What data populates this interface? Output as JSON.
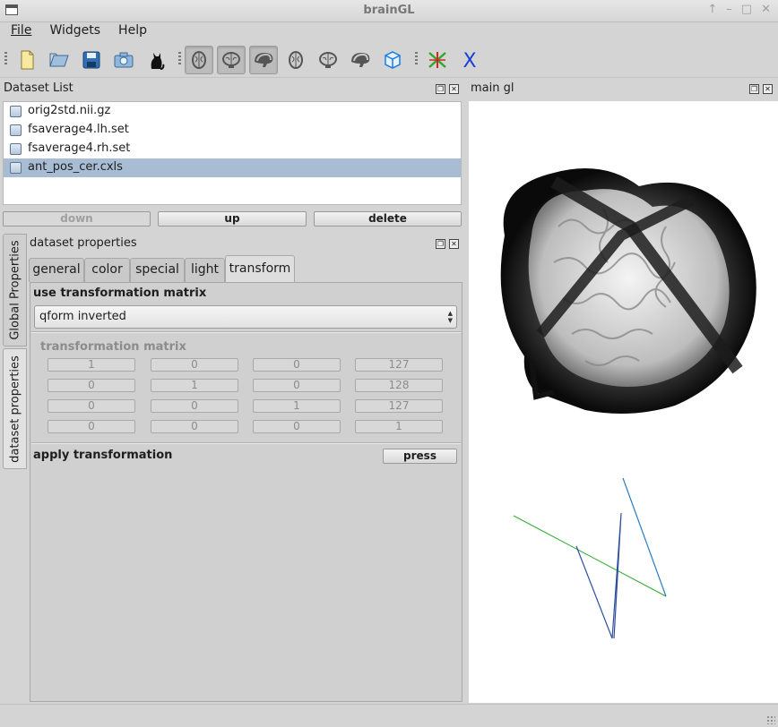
{
  "window": {
    "title": "brainGL"
  },
  "menu": [
    "File",
    "Widgets",
    "Help"
  ],
  "toolbar": {
    "icons": [
      "new-file-icon",
      "open-folder-icon",
      "save-icon",
      "screenshot-camera-icon",
      "cat-icon",
      "brain-axial-view-icon",
      "brain-coronal-view-icon",
      "brain-sagittal-view-icon",
      "brain-axial-toggle-icon",
      "brain-coronal-toggle-icon",
      "brain-sagittal-toggle-icon",
      "cube-icon",
      "fiber-tracks-icon",
      "close-x-icon"
    ],
    "checked": [
      "brain-axial-view-icon",
      "brain-coronal-view-icon",
      "brain-sagittal-view-icon"
    ]
  },
  "dataset_list": {
    "title": "Dataset List",
    "items": [
      {
        "name": "orig2std.nii.gz",
        "selected": false
      },
      {
        "name": "fsaverage4.lh.set",
        "selected": false
      },
      {
        "name": "fsaverage4.rh.set",
        "selected": false
      },
      {
        "name": "ant_pos_cer.cxls",
        "selected": true
      }
    ],
    "buttons": {
      "down": "down",
      "up": "up",
      "delete": "delete"
    }
  },
  "side_tabs": {
    "global": "Global Properties",
    "dataset": "dataset properties"
  },
  "dataset_properties": {
    "title": "dataset properties",
    "tabs": [
      "general",
      "color",
      "special",
      "light",
      "transform"
    ],
    "active_tab": "transform",
    "use_matrix_label": "use transformation matrix",
    "matrix_mode": "qform inverted",
    "matrix_label": "transformation matrix",
    "matrix": [
      [
        "1",
        "0",
        "0",
        "127"
      ],
      [
        "0",
        "1",
        "0",
        "128"
      ],
      [
        "0",
        "0",
        "1",
        "127"
      ],
      [
        "0",
        "0",
        "0",
        "1"
      ]
    ],
    "apply_label": "apply transformation",
    "apply_button": "press"
  },
  "main_gl": {
    "title": "main gl"
  },
  "colors": {
    "selection": "#a8bdd3",
    "accent_blue": "#1a3fd6",
    "fiber_green": "#2faa2f"
  }
}
